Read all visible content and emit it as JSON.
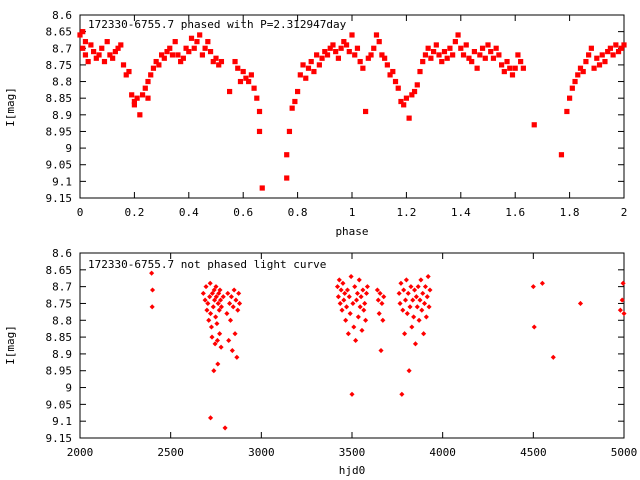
{
  "chart_data": [
    {
      "type": "scatter",
      "title": "172330-6755.7 phased with P=2.312947day",
      "xlabel": "phase",
      "ylabel": "I[mag]",
      "xlim": [
        0,
        2
      ],
      "ylim": [
        9.15,
        8.6
      ],
      "y_inverted": true,
      "grid": false,
      "marker_color": "#ff0000",
      "x_ticks": [
        "0",
        "0.2",
        "0.4",
        "0.6",
        "0.8",
        "1",
        "1.2",
        "1.4",
        "1.6",
        "1.8",
        "2"
      ],
      "y_ticks": [
        "8.6",
        "8.65",
        "8.7",
        "8.75",
        "8.8",
        "8.85",
        "8.9",
        "8.95",
        "9",
        "9.05",
        "9.1",
        "9.15"
      ],
      "points": [
        [
          0.0,
          8.66
        ],
        [
          0.01,
          8.65
        ],
        [
          0.01,
          8.7
        ],
        [
          0.02,
          8.72
        ],
        [
          0.02,
          8.68
        ],
        [
          0.03,
          8.74
        ],
        [
          0.04,
          8.69
        ],
        [
          0.05,
          8.71
        ],
        [
          0.06,
          8.73
        ],
        [
          0.07,
          8.72
        ],
        [
          0.08,
          8.7
        ],
        [
          0.09,
          8.74
        ],
        [
          0.1,
          8.68
        ],
        [
          0.11,
          8.72
        ],
        [
          0.12,
          8.73
        ],
        [
          0.13,
          8.71
        ],
        [
          0.14,
          8.7
        ],
        [
          0.15,
          8.69
        ],
        [
          0.16,
          8.75
        ],
        [
          0.17,
          8.78
        ],
        [
          0.18,
          8.77
        ],
        [
          0.19,
          8.84
        ],
        [
          0.2,
          8.86
        ],
        [
          0.2,
          8.87
        ],
        [
          0.21,
          8.85
        ],
        [
          0.22,
          8.9
        ],
        [
          0.23,
          8.84
        ],
        [
          0.24,
          8.82
        ],
        [
          0.25,
          8.85
        ],
        [
          0.25,
          8.8
        ],
        [
          0.26,
          8.78
        ],
        [
          0.27,
          8.76
        ],
        [
          0.28,
          8.74
        ],
        [
          0.29,
          8.75
        ],
        [
          0.3,
          8.72
        ],
        [
          0.31,
          8.73
        ],
        [
          0.32,
          8.71
        ],
        [
          0.33,
          8.7
        ],
        [
          0.34,
          8.72
        ],
        [
          0.35,
          8.68
        ],
        [
          0.36,
          8.72
        ],
        [
          0.37,
          8.74
        ],
        [
          0.38,
          8.73
        ],
        [
          0.39,
          8.7
        ],
        [
          0.4,
          8.71
        ],
        [
          0.41,
          8.67
        ],
        [
          0.42,
          8.7
        ],
        [
          0.43,
          8.68
        ],
        [
          0.44,
          8.66
        ],
        [
          0.45,
          8.72
        ],
        [
          0.46,
          8.7
        ],
        [
          0.47,
          8.68
        ],
        [
          0.48,
          8.71
        ],
        [
          0.49,
          8.74
        ],
        [
          0.5,
          8.73
        ],
        [
          0.51,
          8.75
        ],
        [
          0.52,
          8.74
        ],
        [
          0.55,
          8.83
        ],
        [
          0.57,
          8.74
        ],
        [
          0.58,
          8.76
        ],
        [
          0.59,
          8.8
        ],
        [
          0.6,
          8.77
        ],
        [
          0.61,
          8.79
        ],
        [
          0.62,
          8.8
        ],
        [
          0.63,
          8.78
        ],
        [
          0.64,
          8.82
        ],
        [
          0.65,
          8.85
        ],
        [
          0.66,
          8.89
        ],
        [
          0.66,
          8.95
        ],
        [
          0.67,
          9.12
        ],
        [
          0.76,
          9.09
        ],
        [
          0.76,
          9.02
        ],
        [
          0.77,
          8.95
        ],
        [
          0.78,
          8.88
        ],
        [
          0.79,
          8.86
        ],
        [
          0.8,
          8.83
        ],
        [
          0.81,
          8.78
        ],
        [
          0.82,
          8.75
        ],
        [
          0.83,
          8.79
        ],
        [
          0.84,
          8.76
        ],
        [
          0.85,
          8.74
        ],
        [
          0.86,
          8.77
        ],
        [
          0.87,
          8.72
        ],
        [
          0.88,
          8.75
        ],
        [
          0.89,
          8.73
        ],
        [
          0.9,
          8.71
        ],
        [
          0.91,
          8.72
        ],
        [
          0.92,
          8.7
        ],
        [
          0.93,
          8.69
        ],
        [
          0.94,
          8.71
        ],
        [
          0.95,
          8.73
        ],
        [
          0.96,
          8.7
        ],
        [
          0.97,
          8.68
        ],
        [
          0.98,
          8.69
        ],
        [
          0.99,
          8.71
        ],
        [
          1.0,
          8.66
        ],
        [
          1.01,
          8.72
        ],
        [
          1.02,
          8.7
        ],
        [
          1.03,
          8.74
        ],
        [
          1.04,
          8.76
        ],
        [
          1.05,
          8.89
        ],
        [
          1.06,
          8.73
        ],
        [
          1.07,
          8.72
        ],
        [
          1.08,
          8.7
        ],
        [
          1.09,
          8.66
        ],
        [
          1.1,
          8.68
        ],
        [
          1.11,
          8.72
        ],
        [
          1.12,
          8.73
        ],
        [
          1.13,
          8.75
        ],
        [
          1.14,
          8.78
        ],
        [
          1.15,
          8.77
        ],
        [
          1.16,
          8.8
        ],
        [
          1.17,
          8.82
        ],
        [
          1.18,
          8.86
        ],
        [
          1.19,
          8.87
        ],
        [
          1.2,
          8.85
        ],
        [
          1.21,
          8.91
        ],
        [
          1.22,
          8.84
        ],
        [
          1.23,
          8.83
        ],
        [
          1.24,
          8.81
        ],
        [
          1.25,
          8.77
        ],
        [
          1.26,
          8.74
        ],
        [
          1.27,
          8.72
        ],
        [
          1.28,
          8.7
        ],
        [
          1.29,
          8.73
        ],
        [
          1.3,
          8.71
        ],
        [
          1.31,
          8.69
        ],
        [
          1.32,
          8.72
        ],
        [
          1.33,
          8.74
        ],
        [
          1.34,
          8.71
        ],
        [
          1.35,
          8.73
        ],
        [
          1.36,
          8.7
        ],
        [
          1.37,
          8.72
        ],
        [
          1.38,
          8.68
        ],
        [
          1.39,
          8.66
        ],
        [
          1.4,
          8.7
        ],
        [
          1.41,
          8.72
        ],
        [
          1.42,
          8.69
        ],
        [
          1.43,
          8.73
        ],
        [
          1.44,
          8.74
        ],
        [
          1.45,
          8.71
        ],
        [
          1.46,
          8.76
        ],
        [
          1.47,
          8.72
        ],
        [
          1.48,
          8.7
        ],
        [
          1.49,
          8.73
        ],
        [
          1.5,
          8.69
        ],
        [
          1.51,
          8.71
        ],
        [
          1.52,
          8.73
        ],
        [
          1.53,
          8.7
        ],
        [
          1.54,
          8.72
        ],
        [
          1.55,
          8.75
        ],
        [
          1.56,
          8.77
        ],
        [
          1.57,
          8.74
        ],
        [
          1.58,
          8.76
        ],
        [
          1.59,
          8.78
        ],
        [
          1.6,
          8.76
        ],
        [
          1.61,
          8.72
        ],
        [
          1.62,
          8.74
        ],
        [
          1.63,
          8.76
        ],
        [
          1.67,
          8.93
        ],
        [
          1.77,
          9.02
        ],
        [
          1.79,
          8.89
        ],
        [
          1.8,
          8.85
        ],
        [
          1.81,
          8.82
        ],
        [
          1.82,
          8.8
        ],
        [
          1.83,
          8.78
        ],
        [
          1.84,
          8.76
        ],
        [
          1.85,
          8.77
        ],
        [
          1.86,
          8.74
        ],
        [
          1.87,
          8.72
        ],
        [
          1.88,
          8.7
        ],
        [
          1.89,
          8.76
        ],
        [
          1.9,
          8.73
        ],
        [
          1.91,
          8.75
        ],
        [
          1.92,
          8.72
        ],
        [
          1.93,
          8.74
        ],
        [
          1.94,
          8.71
        ],
        [
          1.95,
          8.7
        ],
        [
          1.96,
          8.72
        ],
        [
          1.97,
          8.69
        ],
        [
          1.98,
          8.71
        ],
        [
          1.99,
          8.7
        ],
        [
          2.0,
          8.69
        ]
      ]
    },
    {
      "type": "scatter",
      "title": "172330-6755.7 not phased light curve",
      "xlabel": "hjd0",
      "ylabel": "I[mag]",
      "xlim": [
        2000,
        5000
      ],
      "ylim": [
        9.15,
        8.6
      ],
      "y_inverted": true,
      "grid": false,
      "marker_color": "#ff0000",
      "x_ticks": [
        "2000",
        "2500",
        "3000",
        "3500",
        "4000",
        "4500",
        "5000"
      ],
      "y_ticks": [
        "8.6",
        "8.65",
        "8.7",
        "8.75",
        "8.8",
        "8.85",
        "8.9",
        "8.95",
        "9",
        "9.05",
        "9.1",
        "9.15"
      ],
      "points": [
        [
          2395,
          8.66
        ],
        [
          2400,
          8.71
        ],
        [
          2398,
          8.76
        ],
        [
          2680,
          8.72
        ],
        [
          2690,
          8.74
        ],
        [
          2695,
          8.7
        ],
        [
          2700,
          8.77
        ],
        [
          2705,
          8.75
        ],
        [
          2710,
          8.8
        ],
        [
          2715,
          8.73
        ],
        [
          2718,
          8.69
        ],
        [
          2720,
          8.78
        ],
        [
          2725,
          8.82
        ],
        [
          2728,
          8.85
        ],
        [
          2730,
          8.72
        ],
        [
          2735,
          8.76
        ],
        [
          2738,
          8.95
        ],
        [
          2740,
          8.71
        ],
        [
          2742,
          8.74
        ],
        [
          2745,
          8.87
        ],
        [
          2748,
          8.79
        ],
        [
          2750,
          8.7
        ],
        [
          2752,
          8.73
        ],
        [
          2755,
          8.81
        ],
        [
          2758,
          8.86
        ],
        [
          2760,
          8.93
        ],
        [
          2762,
          8.75
        ],
        [
          2765,
          8.72
        ],
        [
          2768,
          8.77
        ],
        [
          2770,
          8.84
        ],
        [
          2772,
          8.71
        ],
        [
          2775,
          8.74
        ],
        [
          2778,
          8.88
        ],
        [
          2780,
          8.76
        ],
        [
          2720,
          9.09
        ],
        [
          2790,
          8.73
        ],
        [
          2800,
          9.12
        ],
        [
          2810,
          8.78
        ],
        [
          2815,
          8.72
        ],
        [
          2820,
          8.86
        ],
        [
          2825,
          8.75
        ],
        [
          2830,
          8.8
        ],
        [
          2835,
          8.73
        ],
        [
          2840,
          8.89
        ],
        [
          2845,
          8.76
        ],
        [
          2850,
          8.71
        ],
        [
          2855,
          8.84
        ],
        [
          2860,
          8.74
        ],
        [
          2865,
          8.91
        ],
        [
          2870,
          8.77
        ],
        [
          2875,
          8.72
        ],
        [
          2880,
          8.75
        ],
        [
          3420,
          8.7
        ],
        [
          3425,
          8.73
        ],
        [
          3430,
          8.68
        ],
        [
          3435,
          8.75
        ],
        [
          3440,
          8.71
        ],
        [
          3445,
          8.77
        ],
        [
          3450,
          8.69
        ],
        [
          3455,
          8.74
        ],
        [
          3460,
          8.72
        ],
        [
          3465,
          8.8
        ],
        [
          3470,
          8.76
        ],
        [
          3475,
          8.71
        ],
        [
          3480,
          8.84
        ],
        [
          3485,
          8.73
        ],
        [
          3490,
          8.78
        ],
        [
          3495,
          8.67
        ],
        [
          3500,
          9.02
        ],
        [
          3505,
          8.75
        ],
        [
          3510,
          8.82
        ],
        [
          3515,
          8.7
        ],
        [
          3520,
          8.86
        ],
        [
          3525,
          8.74
        ],
        [
          3530,
          8.72
        ],
        [
          3535,
          8.79
        ],
        [
          3540,
          8.68
        ],
        [
          3545,
          8.76
        ],
        [
          3550,
          8.73
        ],
        [
          3555,
          8.83
        ],
        [
          3560,
          8.71
        ],
        [
          3565,
          8.77
        ],
        [
          3570,
          8.75
        ],
        [
          3575,
          8.8
        ],
        [
          3580,
          8.72
        ],
        [
          3585,
          8.7
        ],
        [
          3640,
          8.71
        ],
        [
          3645,
          8.74
        ],
        [
          3650,
          8.78
        ],
        [
          3655,
          8.72
        ],
        [
          3660,
          8.89
        ],
        [
          3665,
          8.75
        ],
        [
          3670,
          8.8
        ],
        [
          3675,
          8.73
        ],
        [
          3760,
          8.72
        ],
        [
          3765,
          8.75
        ],
        [
          3770,
          8.69
        ],
        [
          3775,
          9.02
        ],
        [
          3780,
          8.77
        ],
        [
          3785,
          8.71
        ],
        [
          3790,
          8.84
        ],
        [
          3795,
          8.74
        ],
        [
          3800,
          8.68
        ],
        [
          3805,
          8.78
        ],
        [
          3810,
          8.72
        ],
        [
          3815,
          8.95
        ],
        [
          3820,
          8.76
        ],
        [
          3825,
          8.7
        ],
        [
          3830,
          8.82
        ],
        [
          3835,
          8.74
        ],
        [
          3840,
          8.79
        ],
        [
          3845,
          8.71
        ],
        [
          3850,
          8.87
        ],
        [
          3855,
          8.73
        ],
        [
          3860,
          8.76
        ],
        [
          3865,
          8.7
        ],
        [
          3870,
          8.8
        ],
        [
          3875,
          8.74
        ],
        [
          3880,
          8.68
        ],
        [
          3885,
          8.77
        ],
        [
          3890,
          8.72
        ],
        [
          3895,
          8.84
        ],
        [
          3900,
          8.75
        ],
        [
          3905,
          8.7
        ],
        [
          3910,
          8.79
        ],
        [
          3915,
          8.73
        ],
        [
          3920,
          8.67
        ],
        [
          3925,
          8.76
        ],
        [
          3930,
          8.71
        ],
        [
          4500,
          8.7
        ],
        [
          4505,
          8.82
        ],
        [
          4550,
          8.69
        ],
        [
          4610,
          8.91
        ],
        [
          4760,
          8.75
        ],
        [
          4980,
          8.77
        ],
        [
          4990,
          8.74
        ],
        [
          5000,
          8.78
        ],
        [
          4995,
          8.69
        ]
      ]
    }
  ]
}
